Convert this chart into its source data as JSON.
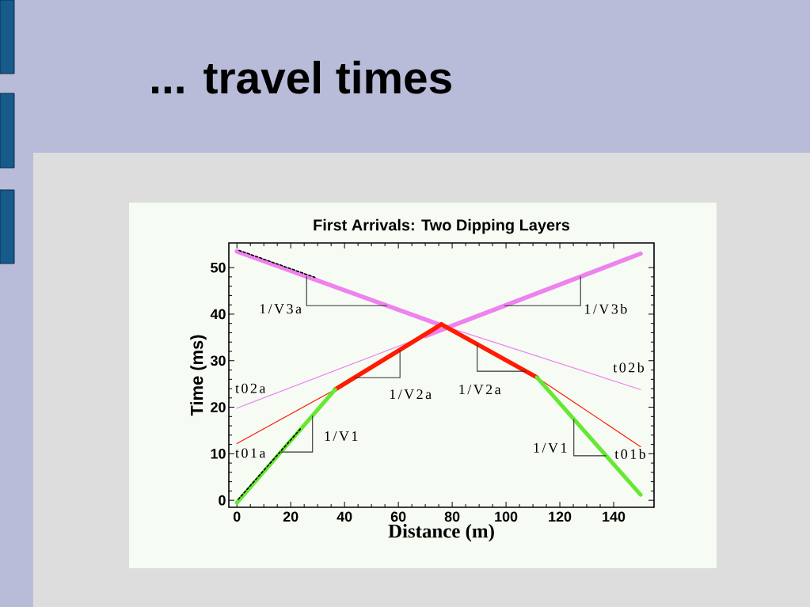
{
  "chart_data": {
    "type": "line",
    "title": "... travel times",
    "subtitle": "First Arrivals: Two Dipping Layers",
    "xlabel": "Distance (m)",
    "ylabel": "Time (ms)",
    "xlim": [
      -3,
      155
    ],
    "ylim": [
      -1.5,
      55.3
    ],
    "xticks": [
      0,
      20,
      40,
      60,
      80,
      100,
      120,
      140
    ],
    "yticks": [
      0,
      10,
      20,
      30,
      40,
      50
    ],
    "series": [
      {
        "color": "#ee82ee",
        "x": [
          0,
          70
        ],
        "values": [
          19.8,
          35.3
        ]
      },
      {
        "color": "#ee82ee",
        "x": [
          75,
          150
        ],
        "values": [
          37.8,
          23.8
        ]
      },
      {
        "color": "#ff1a00",
        "x": [
          0,
          36.5
        ],
        "values": [
          12.2,
          23.8
        ]
      },
      {
        "color": "#ff1a00",
        "x": [
          111.5,
          150
        ],
        "values": [
          26.4,
          11.5
        ]
      },
      {
        "color": "#ee82ee",
        "x": [
          0,
          75
        ],
        "values": [
          53.5,
          37.8
        ]
      },
      {
        "color": "#ee82ee",
        "x": [
          70,
          150
        ],
        "values": [
          35.3,
          53.0
        ]
      },
      {
        "color": "#ff1a00",
        "x": [
          36.5,
          76
        ],
        "values": [
          23.8,
          37.8
        ]
      },
      {
        "color": "#ff1a00",
        "x": [
          76,
          111.5
        ],
        "values": [
          37.8,
          26.4
        ]
      },
      {
        "color": "#66e833",
        "x": [
          0,
          36.5
        ],
        "values": [
          -0.5,
          23.8
        ]
      },
      {
        "color": "#66e833",
        "x": [
          111.5,
          150
        ],
        "values": [
          26.4,
          1.2
        ]
      },
      {
        "color": "#000000",
        "x": [
          0.8,
          29
        ],
        "values": [
          53.7,
          47.9
        ],
        "line_style": "dashed"
      },
      {
        "color": "#000000",
        "x": [
          0.5,
          24
        ],
        "values": [
          0.2,
          15.6
        ],
        "line_style": "dashed"
      }
    ],
    "annotations": [
      {
        "text": "1/V3a",
        "x": 25.9,
        "y": 48.1
      },
      {
        "text": "1/V3b",
        "x": 127.7,
        "y": 48.1
      },
      {
        "text": "1/V2a",
        "x": 60.6,
        "y": 32.3
      },
      {
        "text": "1/V2a",
        "x": 89.3,
        "y": 33.5
      },
      {
        "text": "1/V1",
        "x": 28.1,
        "y": 18.2
      },
      {
        "text": "1/V1",
        "x": 125.2,
        "y": 17.4
      },
      {
        "text": "t02a",
        "x": 0,
        "y": 19.8
      },
      {
        "text": "t01a",
        "x": 0,
        "y": 12.2
      },
      {
        "text": "t02b",
        "x": 150,
        "y": 23.8
      },
      {
        "text": "t01b",
        "x": 150,
        "y": 11.5
      }
    ]
  }
}
